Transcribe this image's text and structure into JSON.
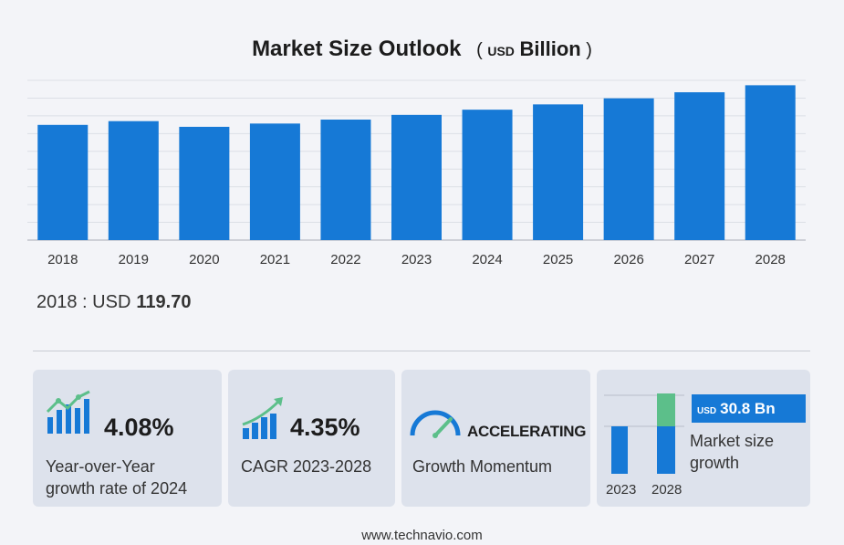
{
  "header": {
    "title": "Market Size Outlook",
    "unit_open": "(",
    "unit_usd": "USD",
    "unit_billion": "Billion",
    "unit_close": ")"
  },
  "chart_data": {
    "type": "bar",
    "categories": [
      "2018",
      "2019",
      "2020",
      "2021",
      "2022",
      "2023",
      "2024",
      "2025",
      "2026",
      "2027",
      "2028"
    ],
    "values": [
      119.7,
      123.6,
      117.7,
      121.1,
      125.2,
      130.1,
      135.5,
      141.0,
      147.3,
      153.6,
      160.9
    ],
    "ylim": [
      0,
      166
    ],
    "grid": true,
    "bar_color": "#1679d6"
  },
  "base_year": {
    "prefix": "2018 : USD",
    "value": "119.70"
  },
  "cards": {
    "yoy": {
      "value": "4.08%",
      "line1": "Year-over-Year",
      "line2": "growth rate of 2024"
    },
    "cagr": {
      "value": "4.35%",
      "line1": "CAGR 2023-2028"
    },
    "momentum": {
      "value": "ACCELERATING",
      "line1": "Growth Momentum"
    },
    "growth": {
      "badge_usd": "USD",
      "badge_value": "30.8 Bn",
      "line1": "Market size",
      "line2": "growth",
      "year_a": "2023",
      "year_b": "2028"
    }
  },
  "colors": {
    "accent_blue": "#1679d6",
    "accent_green": "#5cbf8a",
    "card_bg": "#dde2ec"
  },
  "footer": {
    "url": "www.technavio.com"
  }
}
